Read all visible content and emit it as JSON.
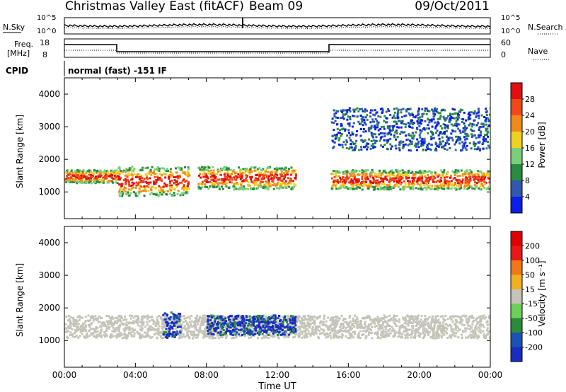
{
  "header": {
    "station": "Christmas Valley East (fitACF)",
    "beam": "Beam 09",
    "date": "09/Oct/2011"
  },
  "noise_panel": {
    "left_label": "N.Sky",
    "right_label": "N.Search",
    "ticks": [
      "10^5",
      "10^0"
    ]
  },
  "freq_panel": {
    "left_label_1": "Freq.",
    "left_label_2": "[MHz]",
    "right_label": "Nave",
    "left_ticks": [
      "18",
      "8"
    ],
    "right_ticks": [
      "60",
      "0"
    ]
  },
  "cpid_panel": {
    "label": "CPID",
    "text": "normal (fast) -151 IF"
  },
  "power_panel": {
    "ylabel": "Slant Range [km]",
    "colorbar_label": "Power [dB]"
  },
  "velocity_panel": {
    "ylabel": "Slant Range [km]",
    "colorbar_label": "Velocity [m s⁻¹]"
  },
  "xlabel": "Time UT",
  "chart_data": [
    {
      "type": "heatmap",
      "name": "power",
      "xlabel": "Time UT",
      "ylabel": "Slant Range [km]",
      "x_ticks": [
        "00:00",
        "04:00",
        "08:00",
        "12:00",
        "16:00",
        "20:00",
        "00:00"
      ],
      "xlim_hours": [
        0,
        24
      ],
      "y_ticks": [
        1000,
        2000,
        3000,
        4000
      ],
      "ylim_km": [
        180,
        4500
      ],
      "colorbar": {
        "label": "Power [dB]",
        "ticks": [
          4,
          8,
          12,
          16,
          20,
          24,
          28
        ],
        "colors": [
          "#0b1fe8",
          "#2f58b0",
          "#2a8c3e",
          "#7ad07a",
          "#f0d020",
          "#f08a18",
          "#f04818",
          "#e01010"
        ]
      },
      "features": [
        {
          "t_start": 0,
          "t_end": 3,
          "range_km": [
            1300,
            1700
          ],
          "level": "high"
        },
        {
          "t_start": 3,
          "t_end": 7,
          "range_km": [
            900,
            1800
          ],
          "level": "high"
        },
        {
          "t_start": 7.5,
          "t_end": 13,
          "range_km": [
            1100,
            1800
          ],
          "level": "high"
        },
        {
          "t_start": 15,
          "t_end": 24,
          "range_km": [
            1100,
            1700
          ],
          "level": "high"
        },
        {
          "t_start": 15,
          "t_end": 24,
          "range_km": [
            2300,
            3600
          ],
          "level": "low"
        }
      ]
    },
    {
      "type": "heatmap",
      "name": "velocity",
      "xlabel": "Time UT",
      "ylabel": "Slant Range [km]",
      "x_ticks": [
        "00:00",
        "04:00",
        "08:00",
        "12:00",
        "16:00",
        "20:00",
        "00:00"
      ],
      "xlim_hours": [
        0,
        24
      ],
      "y_ticks": [
        1000,
        2000,
        3000,
        4000
      ],
      "ylim_km": [
        180,
        4500
      ],
      "colorbar": {
        "label": "Velocity [m s⁻¹]",
        "ticks": [
          200,
          100,
          50,
          15,
          -15,
          -50,
          -100,
          -200
        ],
        "colors": [
          "#1a2bc0",
          "#1c52b8",
          "#2a8b3a",
          "#6cd05a",
          "#c4c4b8",
          "#f0b020",
          "#f07818",
          "#e81818",
          "#e00000"
        ]
      },
      "features": [
        {
          "t_start": 0,
          "t_end": 15,
          "range_km": [
            1100,
            1800
          ],
          "level": "ground-scatter"
        },
        {
          "t_start": 5.5,
          "t_end": 6.5,
          "range_km": [
            1100,
            1900
          ],
          "level": "positive"
        },
        {
          "t_start": 8,
          "t_end": 13,
          "range_km": [
            1200,
            1800
          ],
          "level": "positive"
        },
        {
          "t_start": 15,
          "t_end": 24,
          "range_km": [
            1100,
            1800
          ],
          "level": "ground-scatter"
        }
      ]
    }
  ]
}
